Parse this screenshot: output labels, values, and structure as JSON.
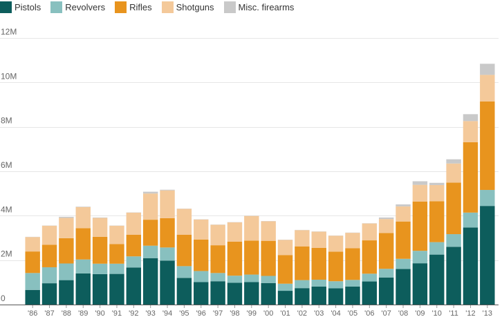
{
  "colors": {
    "Pistols": "#0d5d5c",
    "Revolvers": "#88c0bf",
    "Rifles": "#e8941e",
    "Shotguns": "#f4c99a",
    "Misc. firearms": "#c9c9c9",
    "grid": "#e6e6e6",
    "axis": "#555555"
  },
  "chart_data": {
    "type": "bar",
    "stacked": true,
    "categories": [
      "'86",
      "'87",
      "'88",
      "'89",
      "'90",
      "'91",
      "'92",
      "'93",
      "'94",
      "'95",
      "'96",
      "'97",
      "'98",
      "'99",
      "'00",
      "'01",
      "'02",
      "'03",
      "'04",
      "'05",
      "'06",
      "'07",
      "'08",
      "'09",
      "'10",
      "'11",
      "'12",
      "'13"
    ],
    "series": [
      {
        "name": "Pistols",
        "values": [
          0.66,
          0.96,
          1.1,
          1.4,
          1.37,
          1.38,
          1.67,
          2.09,
          1.98,
          1.2,
          1.01,
          1.05,
          0.98,
          1.01,
          0.97,
          0.62,
          0.74,
          0.81,
          0.73,
          0.81,
          1.04,
          1.22,
          1.6,
          1.86,
          2.25,
          2.6,
          3.47,
          4.44
        ]
      },
      {
        "name": "Revolvers",
        "values": [
          0.76,
          0.72,
          0.75,
          0.63,
          0.47,
          0.46,
          0.5,
          0.56,
          0.59,
          0.53,
          0.5,
          0.37,
          0.32,
          0.34,
          0.32,
          0.32,
          0.36,
          0.31,
          0.32,
          0.3,
          0.35,
          0.39,
          0.46,
          0.56,
          0.56,
          0.57,
          0.67,
          0.72
        ]
      },
      {
        "name": "Rifles",
        "values": [
          0.97,
          1.01,
          1.14,
          1.41,
          1.21,
          0.88,
          0.97,
          1.17,
          1.32,
          1.41,
          1.42,
          1.25,
          1.53,
          1.53,
          1.58,
          1.29,
          1.52,
          1.43,
          1.33,
          1.43,
          1.5,
          1.61,
          1.68,
          2.22,
          1.84,
          2.32,
          3.17,
          3.98
        ]
      },
      {
        "name": "Shotguns",
        "values": [
          0.65,
          0.86,
          0.91,
          0.95,
          0.85,
          0.83,
          1.0,
          1.18,
          1.25,
          1.17,
          0.9,
          0.92,
          0.87,
          1.11,
          0.88,
          0.68,
          0.73,
          0.73,
          0.72,
          0.69,
          0.76,
          0.63,
          0.68,
          0.75,
          0.73,
          0.86,
          0.95,
          1.2
        ]
      },
      {
        "name": "Misc. firearms",
        "values": [
          0.01,
          0.01,
          0.05,
          0.02,
          0.02,
          0.01,
          0.01,
          0.08,
          0.03,
          0.01,
          0.01,
          0.01,
          0.01,
          0.01,
          0.01,
          0.01,
          0.01,
          0.01,
          0.01,
          0.01,
          0.01,
          0.07,
          0.09,
          0.16,
          0.1,
          0.19,
          0.31,
          0.5
        ]
      }
    ],
    "title": "",
    "xlabel": "",
    "ylabel": "",
    "ylim": [
      0,
      12
    ],
    "yticks": [
      0,
      2,
      4,
      6,
      8,
      10,
      12
    ],
    "ytick_labels": [
      "0",
      "2M",
      "4M",
      "6M",
      "8M",
      "10M",
      "12M"
    ],
    "grid": true,
    "legend_position": "top-left"
  }
}
